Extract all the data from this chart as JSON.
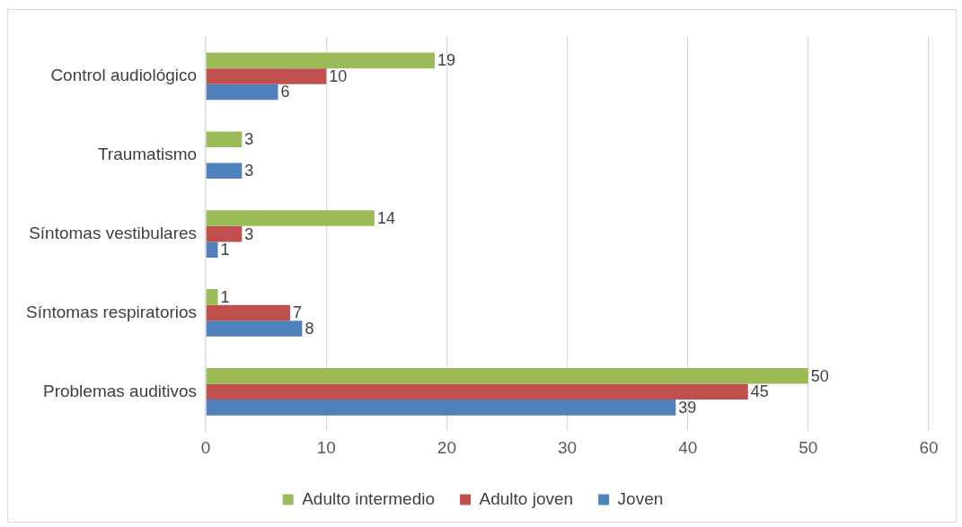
{
  "chart_data": {
    "type": "bar",
    "orientation": "horizontal",
    "categories": [
      "Control audiológico",
      "Traumatismo",
      "Síntomas vestibulares",
      "Síntomas respiratorios",
      "Problemas auditivos"
    ],
    "series": [
      {
        "name": "Adulto intermedio",
        "color": "#9bbb59",
        "values": [
          19,
          3,
          14,
          1,
          50
        ]
      },
      {
        "name": "Adulto joven",
        "color": "#c0504d",
        "values": [
          10,
          null,
          3,
          7,
          45
        ]
      },
      {
        "name": "Joven",
        "color": "#4f81bd",
        "values": [
          6,
          3,
          1,
          8,
          39
        ]
      }
    ],
    "xlim": [
      0,
      60
    ],
    "xticks": [
      0,
      10,
      20,
      30,
      40,
      50,
      60
    ],
    "grid": "x",
    "legend": "bottom",
    "data_labels": true
  }
}
